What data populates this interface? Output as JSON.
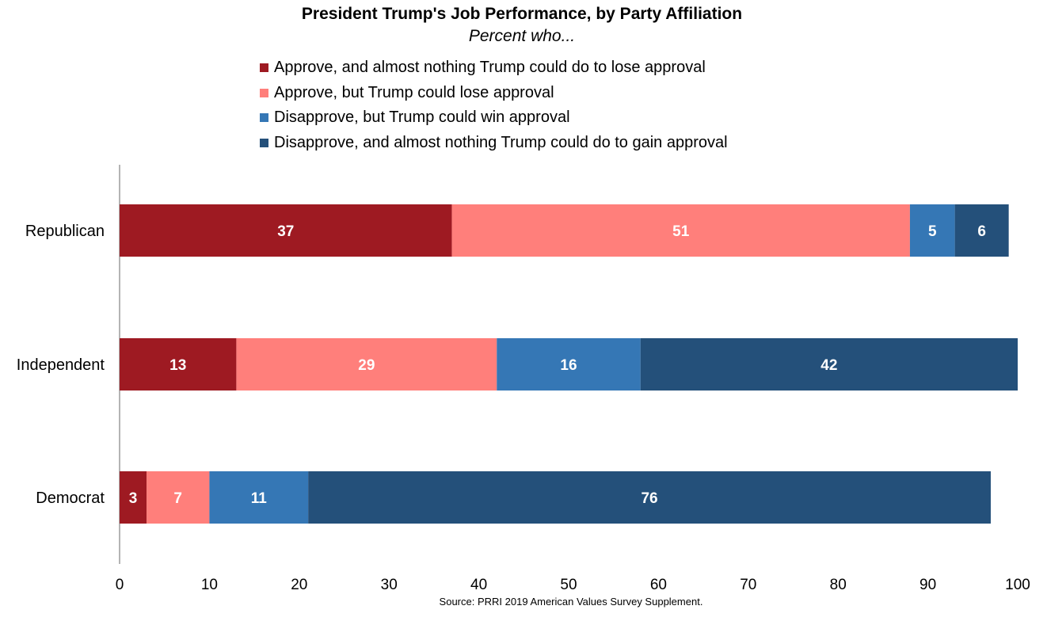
{
  "chart_data": {
    "type": "bar",
    "orientation": "horizontal",
    "stacked": true,
    "title": "President Trump's Job Performance, by Party Affiliation",
    "subtitle": "Percent who...",
    "categories": [
      "Republican",
      "Independent",
      "Democrat"
    ],
    "series": [
      {
        "name": "Approve, and almost nothing Trump could do to lose approval",
        "color": "#9e1a22",
        "values": [
          37,
          13,
          3
        ]
      },
      {
        "name": "Approve, but Trump could lose approval",
        "color": "#ff7f7b",
        "values": [
          51,
          29,
          7
        ]
      },
      {
        "name": "Disapprove, but Trump could win approval",
        "color": "#3577b5",
        "values": [
          5,
          16,
          11
        ]
      },
      {
        "name": "Disapprove, and almost nothing Trump could do to gain approval",
        "color": "#24507a",
        "values": [
          6,
          42,
          76
        ]
      }
    ],
    "xlim": [
      0,
      100
    ],
    "xticks": [
      0,
      10,
      20,
      30,
      40,
      50,
      60,
      70,
      80,
      90,
      100
    ],
    "xlabel": "",
    "ylabel": "",
    "legend_position": "top",
    "grid": false,
    "data_labels": true
  },
  "source": "Source: PRRI 2019 American Values Survey Supplement."
}
